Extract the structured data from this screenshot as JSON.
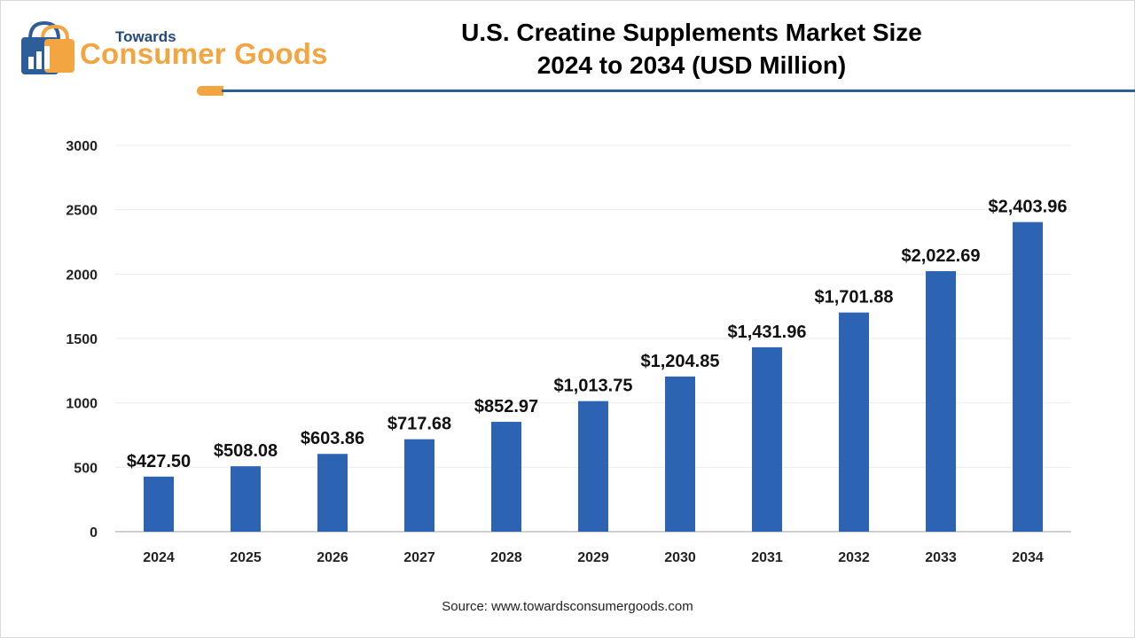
{
  "header": {
    "logo_small": "Towards",
    "logo_brand": "Consumer Goods",
    "title_line1": "U.S. Creatine Supplements Market Size",
    "title_line2": "2024 to 2034 (USD Million)"
  },
  "footer": {
    "source": "Source: www.towardsconsumergoods.com"
  },
  "colors": {
    "bar": "#2c63b3",
    "accent_orange": "#f2a541",
    "accent_navy": "#2e5e99"
  },
  "chart_data": {
    "type": "bar",
    "title": "U.S. Creatine Supplements Market Size 2024 to 2034 (USD Million)",
    "xlabel": "",
    "ylabel": "",
    "ylim": [
      0,
      3000
    ],
    "yticks": [
      0,
      500,
      1000,
      1500,
      2000,
      2500,
      3000
    ],
    "grid": true,
    "categories": [
      "2024",
      "2025",
      "2026",
      "2027",
      "2028",
      "2029",
      "2030",
      "2031",
      "2032",
      "2033",
      "2034"
    ],
    "values": [
      427.5,
      508.08,
      603.86,
      717.68,
      852.97,
      1013.75,
      1204.85,
      1431.96,
      1701.88,
      2022.69,
      2403.96
    ],
    "labels": [
      "$427.50",
      "$508.08",
      "$603.86",
      "$717.68",
      "$852.97",
      "$1,013.75",
      "$1,204.85",
      "$1,431.96",
      "$1,701.88",
      "$2,022.69",
      "$2,403.96"
    ]
  }
}
